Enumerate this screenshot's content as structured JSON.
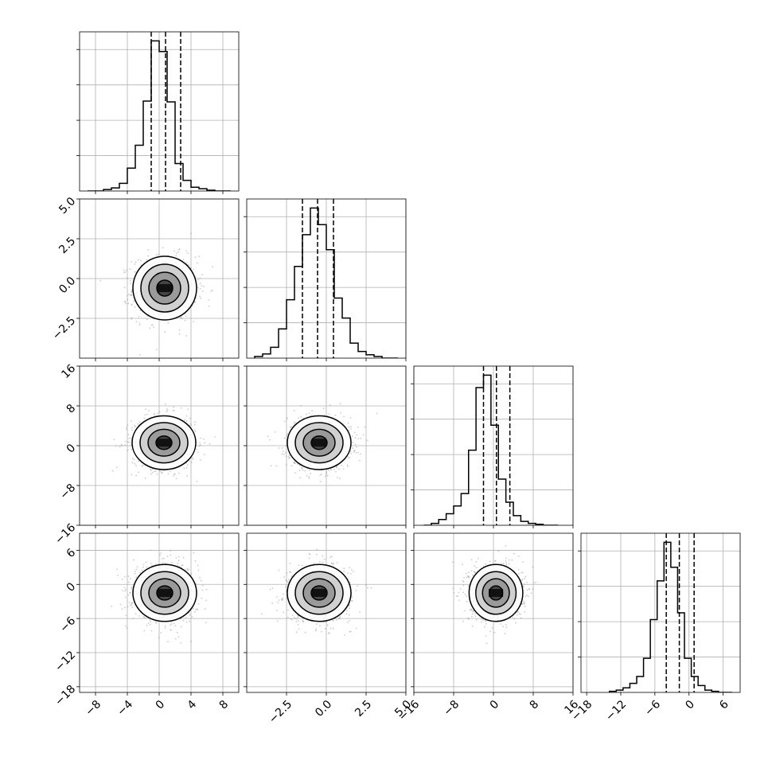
{
  "chart_data": {
    "type": "corner",
    "grid": true,
    "parameters": [
      {
        "index": 0,
        "range": [
          -10,
          10
        ],
        "ticks": [
          -8,
          -4,
          0,
          4,
          8
        ],
        "tick_labels": [
          "−8",
          "−4",
          "0",
          "4",
          "8"
        ],
        "quantiles": [
          -1.0,
          0.8,
          2.7
        ],
        "hist_edges_start": -9.0,
        "hist_bin_width": 1.0,
        "hist_counts": [
          0,
          0,
          2,
          4,
          10,
          30,
          60,
          118,
          197,
          183,
          117,
          36,
          14,
          5,
          3,
          1,
          0,
          0
        ]
      },
      {
        "index": 1,
        "range": [
          -5,
          5
        ],
        "ticks": [
          -2.5,
          0.0,
          2.5,
          5.0
        ],
        "tick_labels": [
          "−2.5",
          "0.0",
          "2.5",
          "5.0"
        ],
        "y_ticks": [
          -2.5,
          0.0,
          2.5,
          5.0
        ],
        "y_tick_labels": [
          "−2.5",
          "0.0",
          "2.5",
          "5.0"
        ],
        "quantiles": [
          -1.5,
          -0.55,
          0.45
        ],
        "hist_edges_start": -4.5,
        "hist_bin_width": 0.5,
        "hist_counts": [
          2,
          5,
          13,
          35,
          70,
          110,
          148,
          180,
          160,
          130,
          72,
          48,
          18,
          8,
          4,
          2,
          0,
          0
        ]
      },
      {
        "index": 2,
        "range": [
          -16,
          16
        ],
        "ticks": [
          -16,
          -8,
          0,
          8,
          16
        ],
        "tick_labels": [
          "−16",
          "−8",
          "0",
          "8",
          "16"
        ],
        "y_ticks": [
          -16,
          -8,
          0,
          8,
          16
        ],
        "y_tick_labels": [
          "−16",
          "−8",
          "0",
          "8",
          "16"
        ],
        "quantiles": [
          -2.0,
          0.6,
          3.3
        ],
        "hist_edges_start": -14.0,
        "hist_bin_width": 1.5,
        "hist_counts": [
          0,
          2,
          6,
          12,
          20,
          33,
          78,
          143,
          156,
          104,
          48,
          24,
          10,
          4,
          2,
          1,
          0,
          0
        ]
      },
      {
        "index": 3,
        "range": [
          -19,
          9
        ],
        "ticks": [
          -18,
          -12,
          -6,
          0,
          6
        ],
        "tick_labels": [
          "−18",
          "−12",
          "−6",
          "0",
          "6"
        ],
        "y_ticks": [
          -18,
          -12,
          -6,
          0,
          6
        ],
        "y_tick_labels": [
          "−18",
          "−12",
          "−6",
          "0",
          "6"
        ],
        "quantiles": [
          -4.0,
          -1.7,
          0.9
        ],
        "hist_edges_start": -14.0,
        "hist_bin_width": 1.2,
        "hist_counts": [
          1,
          2,
          4,
          8,
          14,
          30,
          64,
          98,
          132,
          110,
          70,
          30,
          14,
          6,
          2,
          1,
          0,
          0
        ]
      }
    ],
    "pairs": [
      {
        "x": 0,
        "y": 1,
        "center": [
          0.7,
          -0.6
        ],
        "sigma": [
          2.0,
          1.0
        ]
      },
      {
        "x": 0,
        "y": 2,
        "center": [
          0.6,
          0.6
        ],
        "sigma": [
          2.0,
          2.7
        ]
      },
      {
        "x": 1,
        "y": 2,
        "center": [
          -0.45,
          0.6
        ],
        "sigma": [
          1.0,
          2.7
        ]
      },
      {
        "x": 0,
        "y": 3,
        "center": [
          0.7,
          -1.5
        ],
        "sigma": [
          2.0,
          2.5
        ]
      },
      {
        "x": 1,
        "y": 3,
        "center": [
          -0.45,
          -1.5
        ],
        "sigma": [
          1.0,
          2.5
        ]
      },
      {
        "x": 2,
        "y": 3,
        "center": [
          0.5,
          -1.5
        ],
        "sigma": [
          2.7,
          2.5
        ]
      }
    ],
    "contour_levels_sigma": [
      0.5,
      1.0,
      1.5,
      2.0
    ]
  }
}
